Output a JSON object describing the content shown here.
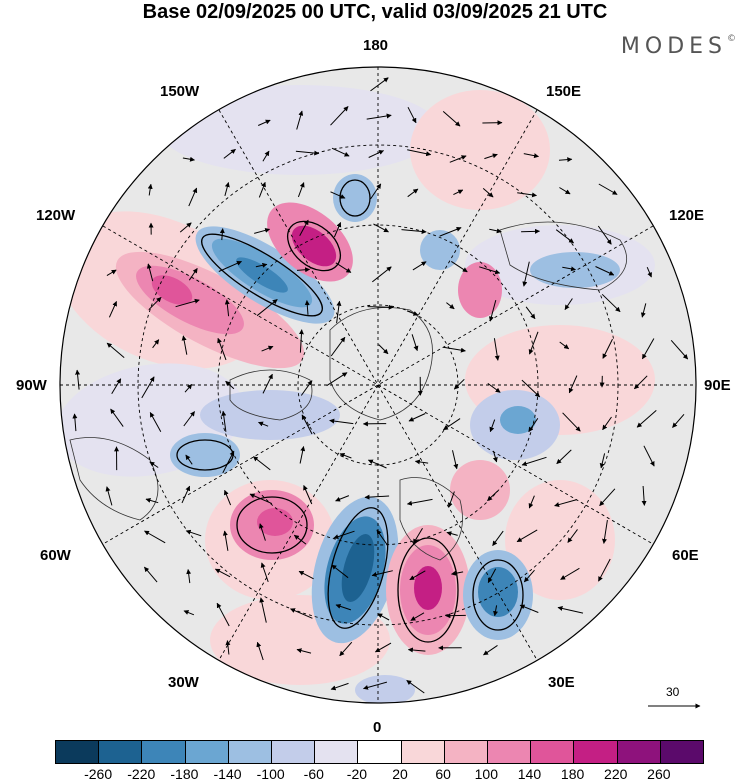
{
  "title": "Base 02/09/2025 00 UTC, valid 03/09/2025 21 UTC",
  "brand": "MODES",
  "brand_mark": "©",
  "longitude_labels": {
    "top": "180",
    "bottom": "0",
    "left": "90W",
    "right": "90E",
    "upper_left_outer": "120W",
    "upper_left_inner": "150W",
    "upper_right_inner": "150E",
    "upper_right_outer": "120E",
    "lower_left_outer": "60W",
    "lower_left_inner": "30W",
    "lower_right_inner": "30E",
    "lower_right_outer": "60E"
  },
  "wind_scale_label": "30",
  "colorbar": {
    "colors": [
      "#0b3a5c",
      "#1d6291",
      "#3d85b8",
      "#6ba6d2",
      "#9dbfe2",
      "#c3cdea",
      "#e4e2f0",
      "#ffffff",
      "#f9d7d9",
      "#f4b3c3",
      "#ec86b1",
      "#e0559a",
      "#c41f84",
      "#8e127c",
      "#5b0a6b"
    ],
    "tick_labels": [
      "-260",
      "-220",
      "-180",
      "-140",
      "-100",
      "-60",
      "-20",
      "20",
      "60",
      "100",
      "140",
      "180",
      "220",
      "260"
    ]
  }
}
